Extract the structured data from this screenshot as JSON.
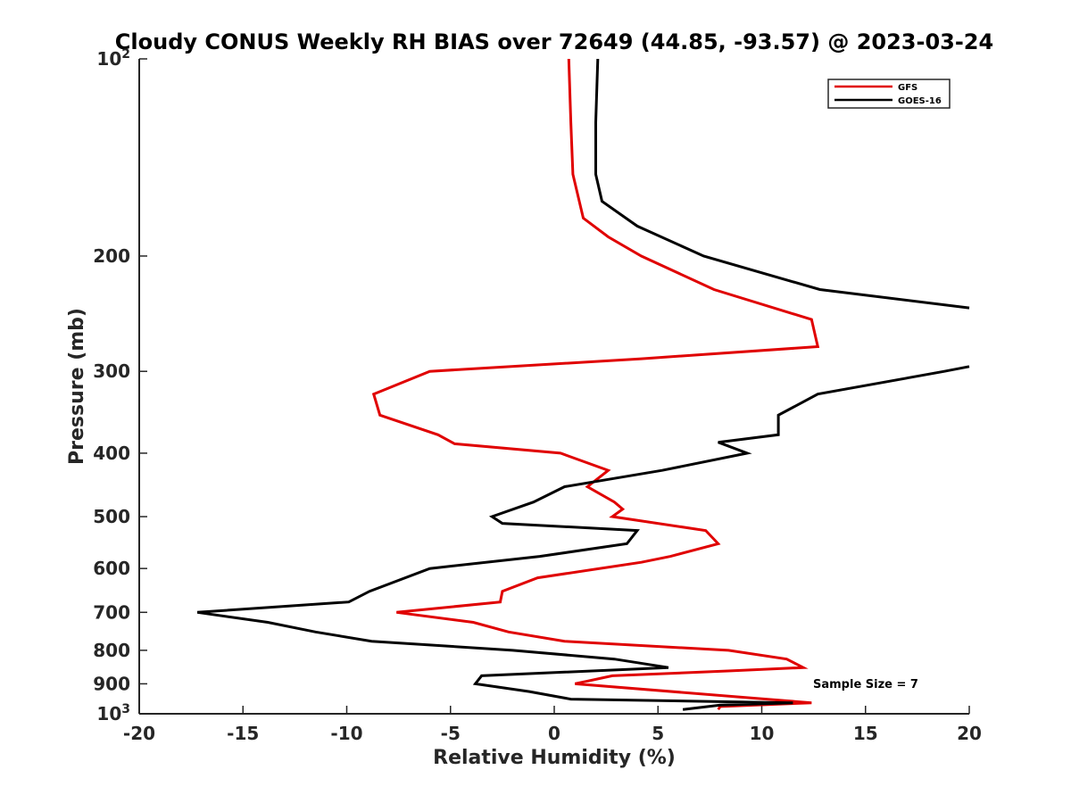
{
  "chart_data": {
    "type": "line",
    "title": "Cloudy CONUS Weekly RH BIAS over 72649 (44.85, -93.57) @ 2023-03-24",
    "xlabel": "Relative Humidity (%)",
    "ylabel": "Pressure (mb)",
    "xlim": [
      -20,
      20
    ],
    "ylim": [
      100,
      1000
    ],
    "y_scale": "log",
    "y_reversed": true,
    "x_ticks": [
      -20,
      -15,
      -10,
      -5,
      0,
      5,
      10,
      15,
      20
    ],
    "y_ticks": [
      {
        "value": 100,
        "base": "10",
        "exp": "2"
      },
      {
        "value": 200,
        "label": "200"
      },
      {
        "value": 300,
        "label": "300"
      },
      {
        "value": 400,
        "label": "400"
      },
      {
        "value": 500,
        "label": "500"
      },
      {
        "value": 600,
        "label": "600"
      },
      {
        "value": 700,
        "label": "700"
      },
      {
        "value": 800,
        "label": "800"
      },
      {
        "value": 900,
        "label": "900"
      },
      {
        "value": 1000,
        "base": "10",
        "exp": "3"
      }
    ],
    "grid": false,
    "legend": {
      "position": "top-right"
    },
    "annotation": "Sample Size = 7",
    "series": [
      {
        "name": "GFS",
        "color": "#e00000",
        "points": [
          [
            0.7,
            100
          ],
          [
            0.8,
            125
          ],
          [
            0.9,
            150
          ],
          [
            1.4,
            175
          ],
          [
            2.6,
            187
          ],
          [
            4.2,
            200
          ],
          [
            7.7,
            225
          ],
          [
            12.4,
            250
          ],
          [
            12.7,
            275
          ],
          [
            4.2,
            287
          ],
          [
            -6.0,
            300
          ],
          [
            -8.7,
            325
          ],
          [
            -8.4,
            350
          ],
          [
            -5.6,
            375
          ],
          [
            -4.8,
            387
          ],
          [
            0.3,
            400
          ],
          [
            2.6,
            425
          ],
          [
            1.6,
            450
          ],
          [
            2.9,
            475
          ],
          [
            3.3,
            487
          ],
          [
            2.8,
            500
          ],
          [
            7.3,
            525
          ],
          [
            7.9,
            550
          ],
          [
            5.6,
            575
          ],
          [
            4.2,
            587
          ],
          [
            -0.8,
            620
          ],
          [
            -2.5,
            650
          ],
          [
            -2.6,
            675
          ],
          [
            -7.6,
            700
          ],
          [
            -3.9,
            725
          ],
          [
            -2.2,
            750
          ],
          [
            0.5,
            775
          ],
          [
            8.4,
            800
          ],
          [
            11.2,
            825
          ],
          [
            12.0,
            850
          ],
          [
            8.5,
            860
          ],
          [
            2.8,
            875
          ],
          [
            1.0,
            900
          ],
          [
            12.4,
            962
          ],
          [
            8.0,
            975
          ],
          [
            7.9,
            985
          ]
        ]
      },
      {
        "name": "GOES-16",
        "color": "#000000",
        "points": [
          [
            2.1,
            100
          ],
          [
            2.0,
            125
          ],
          [
            2.0,
            150
          ],
          [
            2.3,
            165
          ],
          [
            4.0,
            180
          ],
          [
            7.2,
            200
          ],
          [
            12.8,
            225
          ],
          [
            20.0,
            240
          ],
          [
            null,
            270
          ],
          [
            20.0,
            295
          ],
          [
            18.8,
            300
          ],
          [
            12.7,
            325
          ],
          [
            10.8,
            350
          ],
          [
            10.8,
            375
          ],
          [
            7.9,
            385
          ],
          [
            9.3,
            400
          ],
          [
            5.2,
            425
          ],
          [
            0.5,
            450
          ],
          [
            -1.0,
            475
          ],
          [
            -3.0,
            500
          ],
          [
            -2.5,
            512
          ],
          [
            4.0,
            525
          ],
          [
            3.5,
            550
          ],
          [
            -0.7,
            575
          ],
          [
            -6.0,
            600
          ],
          [
            -8.9,
            650
          ],
          [
            -9.9,
            675
          ],
          [
            -17.2,
            700
          ],
          [
            -13.8,
            725
          ],
          [
            -11.5,
            750
          ],
          [
            -8.8,
            775
          ],
          [
            -2.0,
            800
          ],
          [
            2.9,
            825
          ],
          [
            5.5,
            850
          ],
          [
            -3.5,
            875
          ],
          [
            -3.8,
            900
          ],
          [
            -1.2,
            925
          ],
          [
            0.8,
            950
          ],
          [
            11.5,
            962
          ],
          [
            8.0,
            970
          ],
          [
            6.2,
            985
          ]
        ]
      }
    ]
  }
}
